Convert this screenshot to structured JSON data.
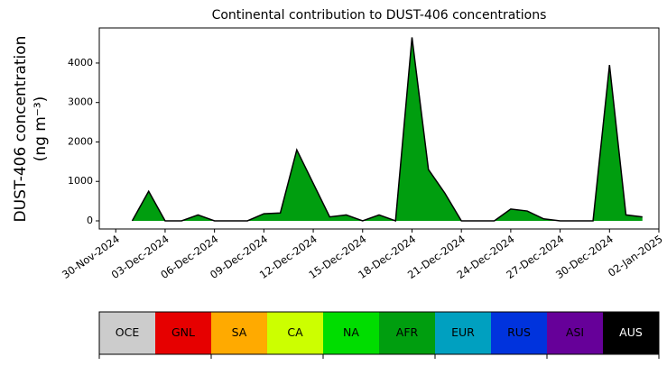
{
  "chart_data": {
    "type": "area",
    "title": "Continental contribution to DUST-406 concentrations",
    "ylabel": [
      "DUST-406 concentration",
      "(ng m⁻³)"
    ],
    "x": [
      "2024-12-01",
      "2024-12-02",
      "2024-12-03",
      "2024-12-04",
      "2024-12-05",
      "2024-12-06",
      "2024-12-07",
      "2024-12-08",
      "2024-12-09",
      "2024-12-10",
      "2024-12-11",
      "2024-12-12",
      "2024-12-13",
      "2024-12-14",
      "2024-12-15",
      "2024-12-16",
      "2024-12-17",
      "2024-12-18",
      "2024-12-19",
      "2024-12-20",
      "2024-12-21",
      "2024-12-22",
      "2024-12-23",
      "2024-12-24",
      "2024-12-25",
      "2024-12-26",
      "2024-12-27",
      "2024-12-28",
      "2024-12-29",
      "2024-12-30",
      "2024-12-31",
      "2025-01-01"
    ],
    "series": [
      {
        "name": "AFR",
        "color": "#009e0f",
        "values": [
          0,
          750,
          0,
          0,
          150,
          0,
          0,
          0,
          180,
          200,
          1800,
          950,
          100,
          150,
          0,
          150,
          0,
          4650,
          1300,
          700,
          0,
          0,
          0,
          300,
          250,
          50,
          0,
          0,
          0,
          3950,
          150,
          100
        ]
      }
    ],
    "outline_color": "#000000",
    "xlim": [
      "2024-11-29",
      "2025-01-02"
    ],
    "xticks": [
      {
        "value": "2024-11-30",
        "label": "30-Nov-2024"
      },
      {
        "value": "2024-12-03",
        "label": "03-Dec-2024"
      },
      {
        "value": "2024-12-06",
        "label": "06-Dec-2024"
      },
      {
        "value": "2024-12-09",
        "label": "09-Dec-2024"
      },
      {
        "value": "2024-12-12",
        "label": "12-Dec-2024"
      },
      {
        "value": "2024-12-15",
        "label": "15-Dec-2024"
      },
      {
        "value": "2024-12-18",
        "label": "18-Dec-2024"
      },
      {
        "value": "2024-12-21",
        "label": "21-Dec-2024"
      },
      {
        "value": "2024-12-24",
        "label": "24-Dec-2024"
      },
      {
        "value": "2024-12-27",
        "label": "27-Dec-2024"
      },
      {
        "value": "2024-12-30",
        "label": "30-Dec-2024"
      },
      {
        "value": "2025-01-02",
        "label": "02-Jan-2025"
      }
    ],
    "ylim": [
      -206,
      4890
    ],
    "yticks": [
      0,
      1000,
      2000,
      3000,
      4000
    ],
    "legend": [
      {
        "name": "OCE",
        "color": "#cccccc"
      },
      {
        "name": "GNL",
        "color": "#e60000"
      },
      {
        "name": "SA",
        "color": "#ffaa00"
      },
      {
        "name": "CA",
        "color": "#ccff00"
      },
      {
        "name": "NA",
        "color": "#00dd00"
      },
      {
        "name": "AFR",
        "color": "#009e0f"
      },
      {
        "name": "EUR",
        "color": "#00a0c0"
      },
      {
        "name": "RUS",
        "color": "#0033dd"
      },
      {
        "name": "ASI",
        "color": "#660099"
      },
      {
        "name": "AUS",
        "color": "#000000"
      }
    ]
  }
}
